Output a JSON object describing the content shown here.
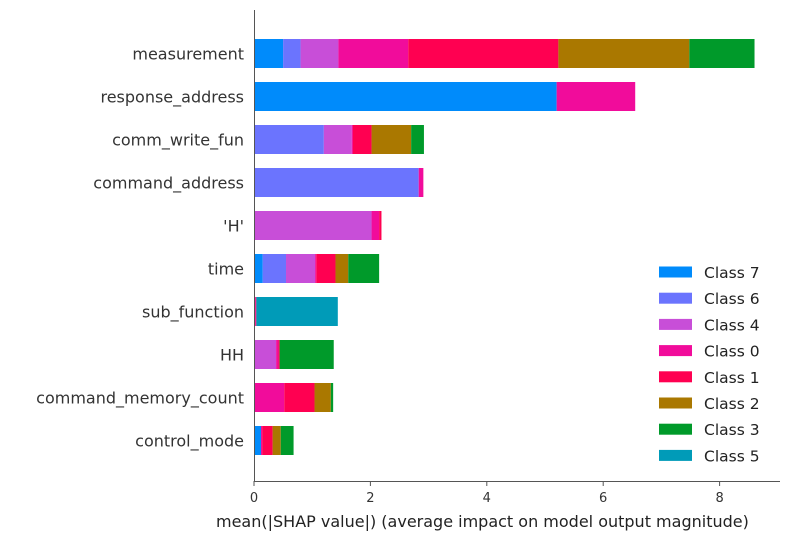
{
  "chart_data": {
    "type": "bar",
    "orientation": "horizontal",
    "stacked": true,
    "xlabel": "mean(|SHAP value|) (average impact on model output magnitude)",
    "xlim": [
      0,
      9
    ],
    "xticks": [
      0,
      2,
      4,
      6,
      8
    ],
    "categories": [
      "measurement",
      "response_address",
      "comm_write_fun",
      "command_address",
      "'H'",
      "time",
      "sub_function",
      "HH",
      "command_memory_count",
      "control_mode"
    ],
    "series": [
      {
        "name": "Class 7",
        "color": "#008bfb",
        "values": [
          0.5,
          5.2,
          0,
          0,
          0,
          0.15,
          0,
          0,
          0,
          0.12
        ]
      },
      {
        "name": "Class 6",
        "color": "#6b74fe",
        "values": [
          0.3,
          0,
          1.2,
          2.83,
          0,
          0.4,
          0,
          0,
          0,
          0
        ]
      },
      {
        "name": "Class 4",
        "color": "#c84ed8",
        "values": [
          0.65,
          0,
          0.48,
          0,
          2.02,
          0.5,
          0,
          0.38,
          0,
          0
        ]
      },
      {
        "name": "Class 0",
        "color": "#f10c9b",
        "values": [
          1.2,
          1.35,
          0.02,
          0.08,
          0.13,
          0.02,
          0.03,
          0.04,
          0.52,
          0.02
        ]
      },
      {
        "name": "Class 1",
        "color": "#ff0051",
        "values": [
          2.58,
          0,
          0.32,
          0,
          0.04,
          0.33,
          0.01,
          0.02,
          0.52,
          0.18
        ]
      },
      {
        "name": "Class 2",
        "color": "#aa7800",
        "values": [
          2.25,
          0,
          0.68,
          0,
          0,
          0.22,
          0,
          0,
          0.28,
          0.14
        ]
      },
      {
        "name": "Class 3",
        "color": "#009a2a",
        "values": [
          1.12,
          0,
          0.22,
          0,
          0,
          0.53,
          0,
          0.93,
          0.04,
          0.22
        ]
      },
      {
        "name": "Class 5",
        "color": "#009bb8",
        "values": [
          0,
          0,
          0,
          0,
          0,
          0,
          1.4,
          0,
          0,
          0
        ]
      }
    ],
    "legend_order": [
      "Class 7",
      "Class 6",
      "Class 4",
      "Class 0",
      "Class 1",
      "Class 2",
      "Class 3",
      "Class 5"
    ],
    "legend_position": "lower-right",
    "grid": false
  }
}
